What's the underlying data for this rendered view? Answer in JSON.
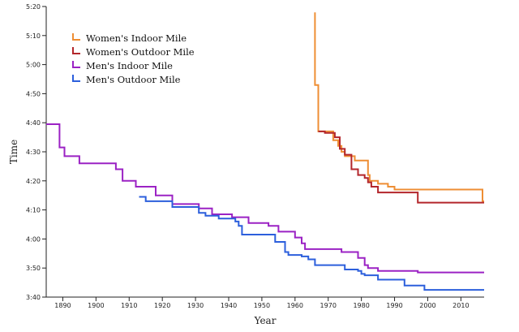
{
  "chart_data": {
    "type": "line",
    "xlabel": "Year",
    "ylabel": "Time",
    "xlim": [
      1885,
      2017
    ],
    "ylim": [
      220,
      320
    ],
    "x_ticks": [
      1890,
      1900,
      1910,
      1920,
      1930,
      1940,
      1950,
      1960,
      1970,
      1980,
      1990,
      2000,
      2010
    ],
    "y_ticks": [
      {
        "value": 220,
        "label": "3:40"
      },
      {
        "value": 230,
        "label": "3:50"
      },
      {
        "value": 240,
        "label": "4:00"
      },
      {
        "value": 250,
        "label": "4:10"
      },
      {
        "value": 260,
        "label": "4:20"
      },
      {
        "value": 270,
        "label": "4:30"
      },
      {
        "value": 280,
        "label": "4:40"
      },
      {
        "value": 290,
        "label": "4:50"
      },
      {
        "value": 300,
        "label": "5:00"
      },
      {
        "value": 310,
        "label": "5:10"
      },
      {
        "value": 320,
        "label": "5:20"
      }
    ],
    "legend_position": "top-left",
    "series": [
      {
        "name": "Women's Indoor Mile",
        "color": "#ee8e34",
        "points": [
          [
            1966,
            318
          ],
          [
            1966,
            293
          ],
          [
            1967,
            293
          ],
          [
            1967,
            277
          ],
          [
            1971.5,
            277
          ],
          [
            1971.5,
            274
          ],
          [
            1973,
            274
          ],
          [
            1973,
            272
          ],
          [
            1974,
            272
          ],
          [
            1974,
            270
          ],
          [
            1975,
            270
          ],
          [
            1975,
            268.5
          ],
          [
            1978,
            268.5
          ],
          [
            1978,
            267
          ],
          [
            1982,
            267
          ],
          [
            1982,
            262
          ],
          [
            1982.5,
            262
          ],
          [
            1982.5,
            260
          ],
          [
            1985,
            260
          ],
          [
            1985,
            259
          ],
          [
            1988,
            259
          ],
          [
            1988,
            258
          ],
          [
            1990,
            258
          ],
          [
            1990,
            257
          ],
          [
            2016.5,
            257
          ],
          [
            2016.5,
            253
          ],
          [
            2017,
            253
          ]
        ]
      },
      {
        "name": "Women's Outdoor Mile",
        "color": "#b3262b",
        "points": [
          [
            1967,
            277
          ],
          [
            1969,
            277
          ],
          [
            1969,
            276.5
          ],
          [
            1972,
            276.5
          ],
          [
            1972,
            275
          ],
          [
            1973.5,
            275
          ],
          [
            1973.5,
            271
          ],
          [
            1975,
            271
          ],
          [
            1975,
            269
          ],
          [
            1977,
            269
          ],
          [
            1977,
            264
          ],
          [
            1979,
            264
          ],
          [
            1979,
            262
          ],
          [
            1981,
            262
          ],
          [
            1981,
            261
          ],
          [
            1982,
            261
          ],
          [
            1982,
            259.5
          ],
          [
            1983,
            259.5
          ],
          [
            1983,
            258
          ],
          [
            1985,
            258
          ],
          [
            1985,
            256
          ],
          [
            1997,
            256
          ],
          [
            1997,
            252.5
          ],
          [
            2017,
            252.5
          ]
        ]
      },
      {
        "name": "Men's Indoor Mile",
        "color": "#9b22c4",
        "points": [
          [
            1885,
            279.5
          ],
          [
            1889,
            279.5
          ],
          [
            1889,
            271.5
          ],
          [
            1890.5,
            271.5
          ],
          [
            1890.5,
            268.5
          ],
          [
            1895,
            268.5
          ],
          [
            1895,
            266
          ],
          [
            1906,
            266
          ],
          [
            1906,
            264
          ],
          [
            1908,
            264
          ],
          [
            1908,
            260
          ],
          [
            1912,
            260
          ],
          [
            1912,
            258
          ],
          [
            1918,
            258
          ],
          [
            1918,
            255
          ],
          [
            1923,
            255
          ],
          [
            1923,
            252
          ],
          [
            1931,
            252
          ],
          [
            1931,
            250.5
          ],
          [
            1935,
            250.5
          ],
          [
            1935,
            248.5
          ],
          [
            1941,
            248.5
          ],
          [
            1941,
            247.5
          ],
          [
            1946,
            247.5
          ],
          [
            1946,
            245.5
          ],
          [
            1952,
            245.5
          ],
          [
            1952,
            244.5
          ],
          [
            1955,
            244.5
          ],
          [
            1955,
            242.5
          ],
          [
            1960,
            242.5
          ],
          [
            1960,
            240.5
          ],
          [
            1962,
            240.5
          ],
          [
            1962,
            238.5
          ],
          [
            1963,
            238.5
          ],
          [
            1963,
            236.5
          ],
          [
            1974,
            236.5
          ],
          [
            1974,
            235.5
          ],
          [
            1979,
            235.5
          ],
          [
            1979,
            233.5
          ],
          [
            1981,
            233.5
          ],
          [
            1981,
            231
          ],
          [
            1982,
            231
          ],
          [
            1982,
            230
          ],
          [
            1985,
            230
          ],
          [
            1985,
            229
          ],
          [
            1997,
            229
          ],
          [
            1997,
            228.5
          ],
          [
            2017,
            228.5
          ]
        ]
      },
      {
        "name": "Men's Outdoor Mile",
        "color": "#2c5fdc",
        "points": [
          [
            1913,
            254.5
          ],
          [
            1915,
            254.5
          ],
          [
            1915,
            253
          ],
          [
            1923,
            253
          ],
          [
            1923,
            251
          ],
          [
            1931,
            251
          ],
          [
            1931,
            249
          ],
          [
            1933,
            249
          ],
          [
            1933,
            248
          ],
          [
            1937,
            248
          ],
          [
            1937,
            247
          ],
          [
            1942,
            247
          ],
          [
            1942,
            246
          ],
          [
            1943,
            246
          ],
          [
            1943,
            244.5
          ],
          [
            1944,
            244.5
          ],
          [
            1944,
            241.5
          ],
          [
            1954,
            241.5
          ],
          [
            1954,
            239
          ],
          [
            1957,
            239
          ],
          [
            1957,
            235.5
          ],
          [
            1958,
            235.5
          ],
          [
            1958,
            234.5
          ],
          [
            1962,
            234.5
          ],
          [
            1962,
            234
          ],
          [
            1964,
            234
          ],
          [
            1964,
            233
          ],
          [
            1966,
            233
          ],
          [
            1966,
            231
          ],
          [
            1975,
            231
          ],
          [
            1975,
            229.5
          ],
          [
            1979,
            229.5
          ],
          [
            1979,
            229
          ],
          [
            1980,
            229
          ],
          [
            1980,
            228
          ],
          [
            1981,
            228
          ],
          [
            1981,
            227.5
          ],
          [
            1985,
            227.5
          ],
          [
            1985,
            226
          ],
          [
            1993,
            226
          ],
          [
            1993,
            224
          ],
          [
            1999,
            224
          ],
          [
            1999,
            222.5
          ],
          [
            2017,
            222.5
          ]
        ]
      }
    ]
  }
}
